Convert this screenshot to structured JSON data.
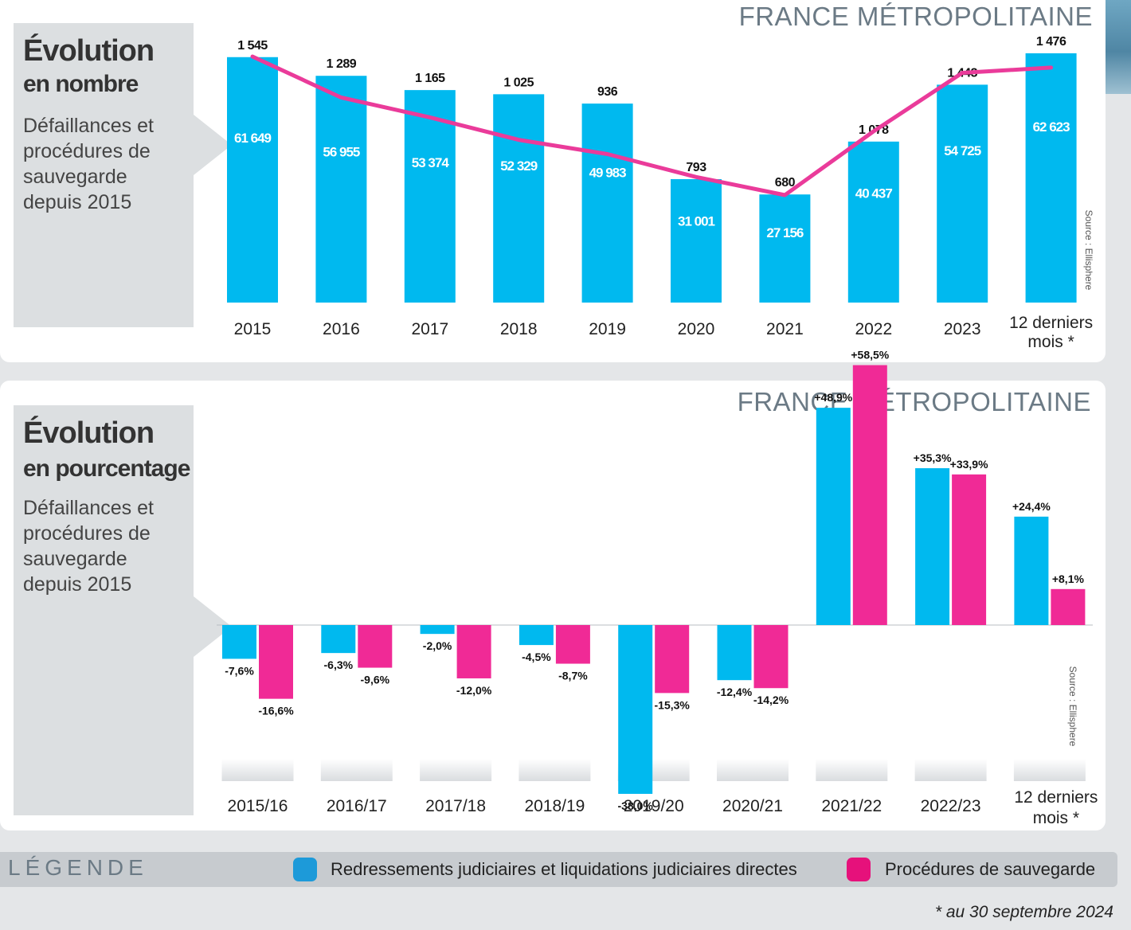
{
  "top_panel": {
    "region": "FRANCE MÉTROPOLITAINE",
    "title_line1": "Évolution",
    "title_line2": "en nombre",
    "description": "Défaillances et procédures de sauvegarde depuis 2015",
    "source": "Source : Ellisphere"
  },
  "bottom_panel": {
    "region": "FRANCE MÉTROPOLITAINE",
    "title_line1": "Évolution",
    "title_line2": "en pourcentage",
    "description": "Défaillances et procédures de sauvegarde depuis 2015",
    "source": "Source : Ellisphere"
  },
  "legend": {
    "title": "LÉGENDE",
    "item1": "Redressements judiciaires et liquidations judiciaires directes",
    "item2": "Procédures de sauvegarde",
    "color1": "#1d9ad9",
    "color2": "#e6117b"
  },
  "footnote": "* au 30 septembre 2024",
  "chart_data": [
    {
      "type": "bar+line",
      "title": "Évolution en nombre",
      "categories": [
        "2015",
        "2016",
        "2017",
        "2018",
        "2019",
        "2020",
        "2021",
        "2022",
        "2023",
        "12 derniers mois *"
      ],
      "series": [
        {
          "name": "Redressements judiciaires et liquidations judiciaires directes",
          "chart": "bar",
          "color": "#00b9ef",
          "values": [
            61649,
            56955,
            53374,
            52329,
            49983,
            31001,
            27156,
            40437,
            54725,
            62623
          ],
          "labels": [
            "61 649",
            "56 955",
            "53 374",
            "52 329",
            "49 983",
            "31 001",
            "27 156",
            "40 437",
            "54 725",
            "62 623"
          ]
        },
        {
          "name": "Procédures de sauvegarde",
          "chart": "line",
          "color": "#ea3b9a",
          "values": [
            1545,
            1289,
            1165,
            1025,
            936,
            793,
            680,
            1078,
            1443,
            1476
          ],
          "labels": [
            "1 545",
            "1 289",
            "1 165",
            "1 025",
            "936",
            "793",
            "680",
            "1 078",
            "1 443",
            "1 476"
          ]
        }
      ],
      "bar_ylim": [
        0,
        66000
      ],
      "line_ylim": [
        0,
        1800
      ]
    },
    {
      "type": "bar",
      "title": "Évolution en pourcentage",
      "categories": [
        "2015/16",
        "2016/17",
        "2017/18",
        "2018/19",
        "2019/20",
        "2020/21",
        "2021/22",
        "2022/23",
        "12 derniers mois *"
      ],
      "series": [
        {
          "name": "Redressements judiciaires et liquidations judiciaires directes",
          "color": "#00b9ef",
          "values": [
            -7.6,
            -6.3,
            -2.0,
            -4.5,
            -38.0,
            -12.4,
            48.9,
            35.3,
            24.4
          ],
          "labels": [
            "-7,6%",
            "-6,3%",
            "-2,0%",
            "-4,5%",
            "-38,0%",
            "-12,4%",
            "+48,9%",
            "+35,3%",
            "+24,4%"
          ]
        },
        {
          "name": "Procédures de sauvegarde",
          "color": "#f02a96",
          "values": [
            -16.6,
            -9.6,
            -12.0,
            -8.7,
            -15.3,
            -14.2,
            58.5,
            33.9,
            8.1
          ],
          "labels": [
            "-16,6%",
            "-9,6%",
            "-12,0%",
            "-8,7%",
            "-15,3%",
            "-14,2%",
            "+58,5%",
            "+33,9%",
            "+8,1%"
          ]
        }
      ],
      "ylim": [
        -45,
        60
      ]
    }
  ]
}
